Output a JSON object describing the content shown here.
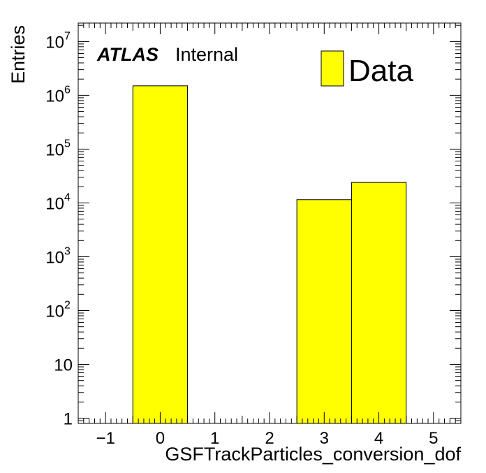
{
  "chart_data": {
    "type": "bar",
    "histogram": true,
    "bins": [
      {
        "low": -0.5,
        "high": 0.5,
        "value": 1500000
      },
      {
        "low": 2.5,
        "high": 3.5,
        "value": 11500
      },
      {
        "low": 3.5,
        "high": 4.5,
        "value": 24000
      }
    ],
    "x_centers": [
      0,
      3,
      4
    ],
    "values": [
      1500000,
      11500,
      24000
    ],
    "xlabel": "GSFTrackParticles_conversion_dof",
    "ylabel": "Entries",
    "xlim": [
      -1.5,
      5.5
    ],
    "ylim": [
      0.8,
      22000000
    ],
    "yscale": "log",
    "x_ticks": [
      {
        "value": -1,
        "label": "−1"
      },
      {
        "value": 0,
        "label": "0"
      },
      {
        "value": 1,
        "label": "1"
      },
      {
        "value": 2,
        "label": "2"
      },
      {
        "value": 3,
        "label": "3"
      },
      {
        "value": 4,
        "label": "4"
      },
      {
        "value": 5,
        "label": "5"
      }
    ],
    "y_ticks": [
      {
        "value": 1,
        "base": "1",
        "exp": ""
      },
      {
        "value": 10,
        "base": "10",
        "exp": ""
      },
      {
        "value": 100,
        "base": "10",
        "exp": "2"
      },
      {
        "value": 1000,
        "base": "10",
        "exp": "3"
      },
      {
        "value": 10000,
        "base": "10",
        "exp": "4"
      },
      {
        "value": 100000,
        "base": "10",
        "exp": "5"
      },
      {
        "value": 1000000,
        "base": "10",
        "exp": "6"
      },
      {
        "value": 10000000,
        "base": "10",
        "exp": "7"
      }
    ],
    "legend": {
      "entries": [
        {
          "label": "Data",
          "color": "#ffff00"
        }
      ],
      "placement": "top-right"
    },
    "annotation": {
      "experiment": "ATLAS",
      "status": "Internal"
    },
    "grid": false,
    "colors": {
      "fill": "#ffff00",
      "edge": "#000000"
    }
  }
}
